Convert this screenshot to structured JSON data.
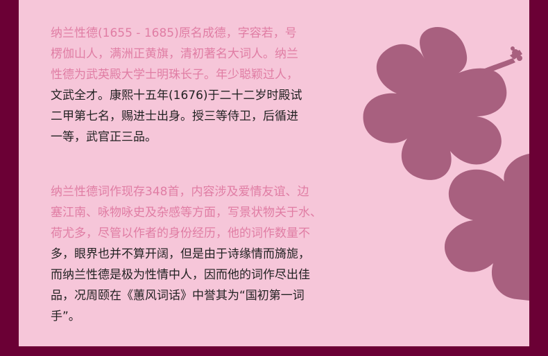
{
  "paragraphs": [
    {
      "lines": [
        "纳兰性德(1655 - 1685)原名成德，字容若，号",
        "楞伽山人，满洲正黄旗，清初著名大词人。纳兰",
        "性德为武英殿大学士明珠长子。年少聪颖过人，",
        "文武全才。康熙十五年(1676)于二十二岁时殿试",
        "二甲第七名，赐进士出身。授三等侍卫，后循进",
        "一等，武官正三品。"
      ],
      "accent_lines": 3
    },
    {
      "lines": [
        "纳兰性德词作现存348首，内容涉及爱情友谊、边",
        "塞江南、咏物咏史及杂感等方面，写景状物关于水、",
        "荷尤多，尽管以作者的身份经历，他的词作数量不",
        "多，眼界也并不算开阔，但是由于诗缘情而旖旎，",
        "而纳兰性德是极为性情中人，因而他的词作尽出佳",
        "品，况周颐在《蕙风词话》中誉其为“国初第一词",
        "手”。"
      ],
      "accent_lines": 3
    }
  ],
  "colors": {
    "frame": "#6b0035",
    "panel": "#f6c6d9",
    "accent_text": "#e07da4",
    "body_text": "#222222",
    "flower": "#a8607f"
  }
}
